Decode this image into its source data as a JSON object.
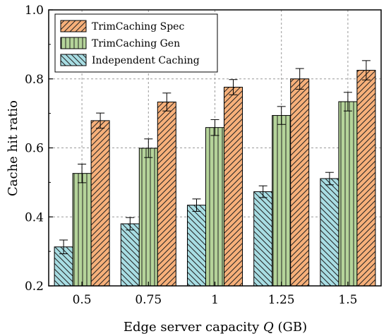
{
  "chart_data": {
    "type": "bar",
    "xlabel": "Edge server capacity Q (GB)",
    "xlabel_parts": {
      "before": "Edge server capacity ",
      "italic": "Q",
      "after": " (GB)"
    },
    "ylabel": "Cache hit ratio",
    "categories": [
      "0.5",
      "0.75",
      "1",
      "1.25",
      "1.5"
    ],
    "ylim": [
      0.2,
      1.0
    ],
    "yticks": [
      0.2,
      0.4,
      0.6,
      0.8,
      1.0
    ],
    "ytick_labels": [
      "0.2",
      "0.4",
      "0.6",
      "0.8",
      "1.0"
    ],
    "grid": true,
    "legend_position": "top-left",
    "series": [
      {
        "name": "Independent Caching",
        "color": "#a8dde3",
        "hatch": "backslash",
        "values": [
          0.313,
          0.38,
          0.434,
          0.473,
          0.511
        ],
        "errors": [
          0.02,
          0.018,
          0.018,
          0.017,
          0.018
        ]
      },
      {
        "name": "TrimCaching Gen",
        "color": "#b5d49a",
        "hatch": "vertical",
        "values": [
          0.526,
          0.599,
          0.659,
          0.694,
          0.734
        ],
        "errors": [
          0.027,
          0.027,
          0.023,
          0.026,
          0.027
        ]
      },
      {
        "name": "TrimCaching Spec",
        "color": "#f7b07a",
        "hatch": "slash",
        "values": [
          0.679,
          0.733,
          0.776,
          0.8,
          0.825
        ],
        "errors": [
          0.022,
          0.026,
          0.022,
          0.03,
          0.028
        ]
      }
    ],
    "legend_order": [
      "TrimCaching Spec",
      "TrimCaching Gen",
      "Independent Caching"
    ]
  }
}
